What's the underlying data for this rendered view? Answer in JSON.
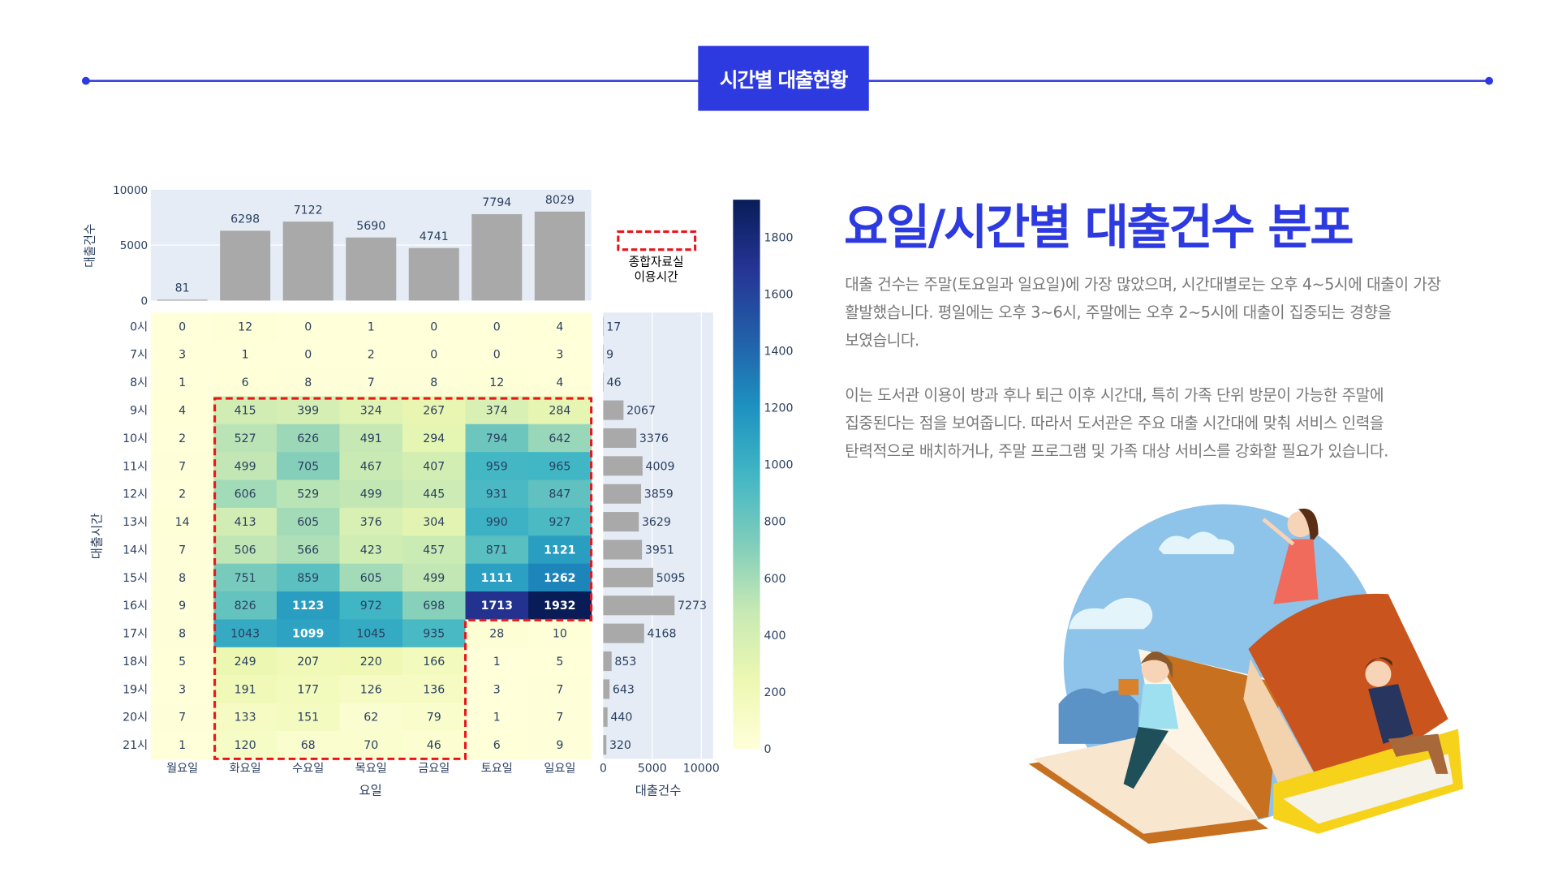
{
  "header": {
    "badge": "시간별 대출현황"
  },
  "title": "요일/시간별 대출건수 분포",
  "paragraphs": [
    [
      "대출 건수는 주말(토요일과 일요일)에 가장 많았으며, 시간대별로는 오후 4~5시에 대출이 가장",
      "활발했습니다. 평일에는 오후 3~6시, 주말에는 오후 2~5시에 대출이 집중되는 경향을",
      "보였습니다."
    ],
    [
      "이는 도서관 이용이 방과 후나 퇴근 이후 시간대, 특히 가족 단위 방문이 가능한 주말에",
      "집중된다는 점을 보여줍니다. 따라서 도서관은 주요 대출 시간대에 맞춰 서비스 인력을",
      "탄력적으로 배치하거나, 주말 프로그램 및 가족 대상 서비스를 강화할 필요가 있습니다."
    ]
  ],
  "legend_annotation": [
    "종합자료실",
    "이용시간"
  ],
  "colors": {
    "accent": "#2d3ae0",
    "bar": "#a9a9a9",
    "plot_bg": "#e5ecf6",
    "highlight": "#e8161b"
  },
  "chart_data": {
    "type": "heatmap",
    "xlabel": "요일",
    "ylabel": "대출시간",
    "days": [
      "월요일",
      "화요일",
      "수요일",
      "목요일",
      "금요일",
      "토요일",
      "일요일"
    ],
    "hours": [
      "0시",
      "7시",
      "8시",
      "9시",
      "10시",
      "11시",
      "12시",
      "13시",
      "14시",
      "15시",
      "16시",
      "17시",
      "18시",
      "19시",
      "20시",
      "21시"
    ],
    "z": [
      [
        0,
        12,
        0,
        1,
        0,
        0,
        4
      ],
      [
        3,
        1,
        0,
        2,
        0,
        0,
        3
      ],
      [
        1,
        6,
        8,
        7,
        8,
        12,
        4
      ],
      [
        4,
        415,
        399,
        324,
        267,
        374,
        284
      ],
      [
        2,
        527,
        626,
        491,
        294,
        794,
        642
      ],
      [
        7,
        499,
        705,
        467,
        407,
        959,
        965
      ],
      [
        2,
        606,
        529,
        499,
        445,
        931,
        847
      ],
      [
        14,
        413,
        605,
        376,
        304,
        990,
        927
      ],
      [
        7,
        506,
        566,
        423,
        457,
        871,
        1121
      ],
      [
        8,
        751,
        859,
        605,
        499,
        1111,
        1262
      ],
      [
        9,
        826,
        1123,
        972,
        698,
        1713,
        1932
      ],
      [
        8,
        1043,
        1099,
        1045,
        935,
        28,
        10
      ],
      [
        5,
        249,
        207,
        220,
        166,
        1,
        5
      ],
      [
        3,
        191,
        177,
        126,
        136,
        3,
        7
      ],
      [
        7,
        133,
        151,
        62,
        79,
        1,
        7
      ],
      [
        1,
        120,
        68,
        70,
        46,
        6,
        9
      ]
    ],
    "colorscale": "YlGnBu",
    "zrange": [
      0,
      1932
    ],
    "colorbar_ticks": [
      "0",
      "200",
      "400",
      "600",
      "800",
      "1000",
      "1200",
      "1400",
      "1600",
      "1800"
    ],
    "top_bar": {
      "ylabel": "대출건수",
      "values": [
        81,
        6298,
        7122,
        5690,
        4741,
        7794,
        8029
      ],
      "yticks": [
        "0",
        "5000",
        "10000"
      ],
      "ylim": [
        0,
        10000
      ]
    },
    "side_bar": {
      "xlabel": "대출건수",
      "values": [
        17,
        9,
        46,
        2067,
        3376,
        4009,
        3859,
        3629,
        3951,
        5095,
        7273,
        4168,
        853,
        643,
        440,
        320
      ],
      "xticks": [
        "0",
        "5000",
        "10000"
      ],
      "xlim": [
        0,
        11200
      ]
    }
  }
}
